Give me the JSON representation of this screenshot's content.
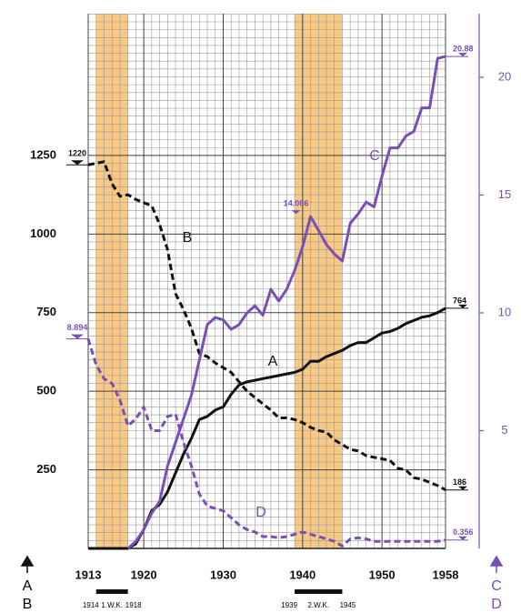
{
  "chart_data": {
    "type": "line",
    "x": [
      1913,
      1914,
      1915,
      1916,
      1917,
      1918,
      1919,
      1920,
      1921,
      1922,
      1923,
      1924,
      1925,
      1926,
      1927,
      1928,
      1929,
      1930,
      1931,
      1932,
      1933,
      1934,
      1935,
      1936,
      1937,
      1938,
      1939,
      1940,
      1941,
      1942,
      1943,
      1944,
      1945,
      1946,
      1947,
      1948,
      1949,
      1950,
      1951,
      1952,
      1953,
      1954,
      1955,
      1956,
      1957,
      1958
    ],
    "xlim": [
      1913,
      1958
    ],
    "xticks": [
      1913,
      1920,
      1930,
      1940,
      1950,
      1958
    ],
    "ylim": [
      0,
      1701
    ],
    "yticks": [
      250,
      500,
      750,
      1000,
      1250
    ],
    "y2lim": [
      0,
      22.7
    ],
    "y2ticks": [
      5,
      10,
      15,
      20
    ],
    "grid": true,
    "series": [
      {
        "name": "A",
        "color": "#111111",
        "dash": false,
        "values": [
          0,
          0,
          0,
          0,
          0,
          0,
          15,
          60,
          120,
          140,
          180,
          240,
          300,
          350,
          410,
          420,
          440,
          450,
          490,
          520,
          530,
          535,
          540,
          545,
          550,
          555,
          560,
          570,
          595,
          595,
          610,
          620,
          630,
          645,
          655,
          655,
          670,
          685,
          690,
          700,
          715,
          725,
          735,
          740,
          750,
          764
        ]
      },
      {
        "name": "B",
        "color": "#111111",
        "dash": true,
        "values": [
          1220,
          1225,
          1230,
          1160,
          1120,
          1125,
          1110,
          1100,
          1090,
          1030,
          950,
          810,
          760,
          700,
          620,
          610,
          590,
          575,
          560,
          530,
          500,
          480,
          460,
          440,
          415,
          415,
          410,
          400,
          385,
          375,
          370,
          345,
          330,
          315,
          310,
          295,
          290,
          285,
          280,
          255,
          250,
          225,
          220,
          210,
          200,
          186
        ]
      },
      {
        "name": "C",
        "color": "#7a4fb5",
        "dash": false,
        "axis": "y2",
        "values": [
          null,
          null,
          null,
          null,
          null,
          0,
          0.3,
          0.8,
          1.5,
          2.0,
          3.5,
          4.5,
          5.5,
          6.5,
          8.0,
          9.5,
          9.8,
          9.7,
          9.3,
          9.5,
          10.0,
          10.3,
          9.9,
          11.0,
          10.5,
          11.0,
          11.8,
          12.8,
          14.086,
          13.5,
          12.9,
          12.5,
          12.2,
          13.8,
          14.2,
          14.7,
          14.5,
          15.8,
          17.0,
          17.0,
          17.5,
          17.7,
          18.7,
          18.7,
          20.8,
          20.88
        ]
      },
      {
        "name": "D",
        "color": "#7a4fb5",
        "dash": true,
        "axis": "y2",
        "values": [
          8.894,
          7.8,
          7.2,
          7.0,
          6.3,
          5.2,
          5.5,
          6.0,
          5.0,
          5.0,
          5.6,
          5.7,
          4.5,
          3.5,
          2.3,
          1.8,
          1.7,
          1.6,
          1.3,
          1.0,
          0.8,
          0.7,
          0.5,
          0.5,
          0.45,
          0.5,
          0.6,
          0.7,
          0.6,
          0.5,
          0.4,
          0.3,
          0.1,
          0.4,
          0.45,
          0.4,
          0.3,
          0.3,
          0.3,
          0.3,
          0.3,
          0.3,
          0.3,
          0.3,
          0.3,
          0.356
        ]
      }
    ],
    "annotations": [
      {
        "text": "1220",
        "x": 1913,
        "y": 1220,
        "axis": "y"
      },
      {
        "text": "8.894",
        "x": 1913,
        "y": 8.894,
        "axis": "y2"
      },
      {
        "text": "14.086",
        "x": 1941,
        "y": 14.086,
        "axis": "y2"
      },
      {
        "text": "20.88",
        "x": 1958,
        "y": 20.88,
        "axis": "y2"
      },
      {
        "text": "764",
        "x": 1958,
        "y": 764,
        "axis": "y"
      },
      {
        "text": "186",
        "x": 1958,
        "y": 186,
        "axis": "y"
      },
      {
        "text": "0.356",
        "x": 1958,
        "y": 0.356,
        "axis": "y2"
      }
    ],
    "periods": [
      {
        "start": 1914,
        "end": 1918,
        "label": "1.W.K.",
        "color": "#f7c984"
      },
      {
        "start": 1939,
        "end": 1945,
        "label": "2.W.K.",
        "color": "#f7c984"
      }
    ]
  }
}
